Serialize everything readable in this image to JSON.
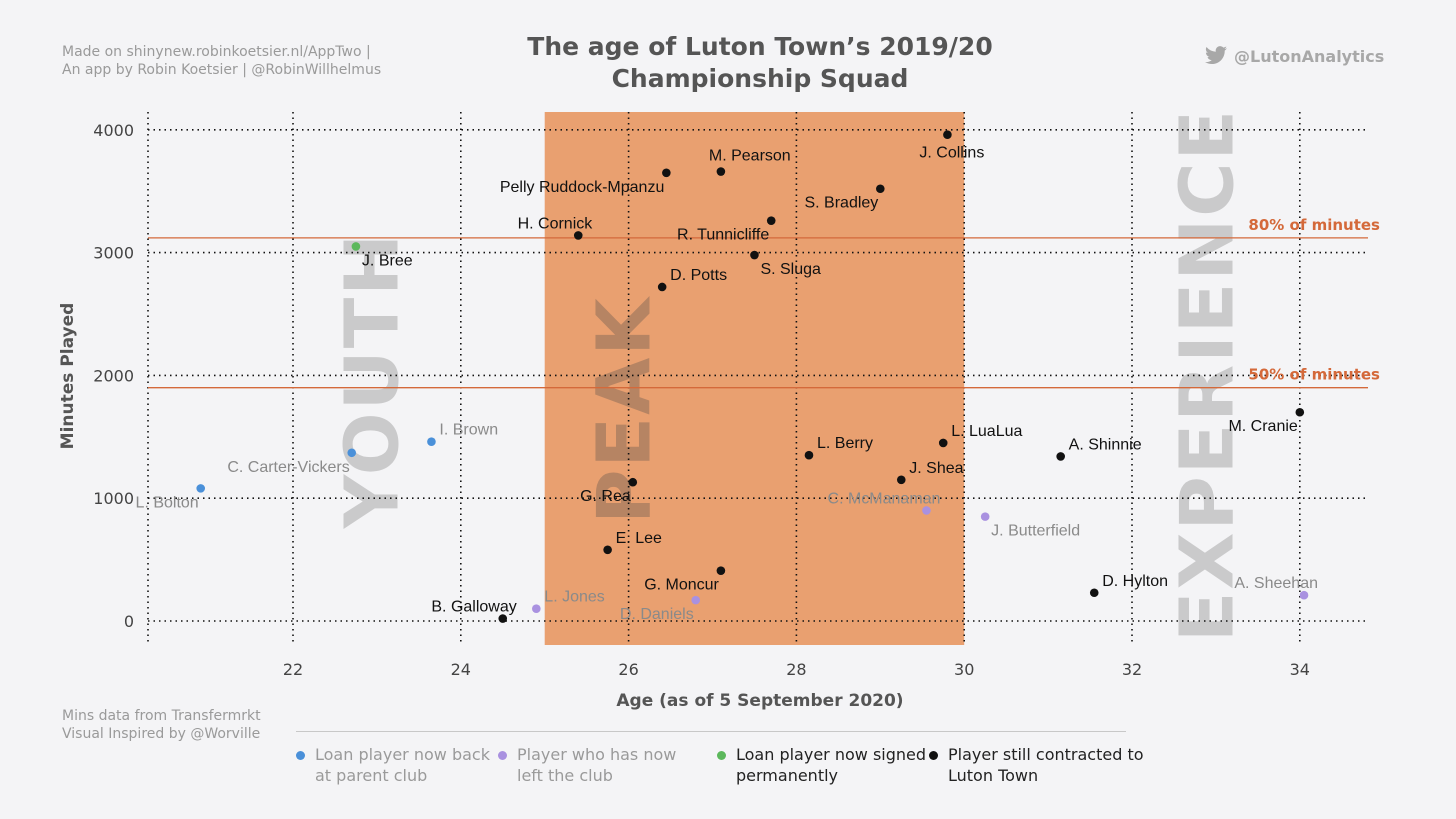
{
  "header": {
    "credit_line1": "Made on shinynew.robinkoetsier.nl/AppTwo |",
    "credit_line2": "An app by Robin Koetsier | @RobinWillhelmus",
    "title_line1": "The age of Luton Town’s 2019/20",
    "title_line2": "Championship Squad",
    "twitter_handle": "@LutonAnalytics",
    "twitter_icon": "twitter-bird-icon"
  },
  "footer": {
    "source_line1": "Mins data from Transfermrkt",
    "source_line2": "Visual Inspired by  @Worville"
  },
  "legend": {
    "items": [
      {
        "label": "Loan player now back at parent club",
        "color": "#4a90d9"
      },
      {
        "label": "Player who has now left the club",
        "color": "#a991e0"
      },
      {
        "label": "Loan player now signed permanently",
        "color": "#5cb85c"
      },
      {
        "label": "Player still contracted to Luton Town",
        "color": "#111111"
      }
    ]
  },
  "chart_data": {
    "type": "scatter",
    "title": "The age of Luton Town’s 2019/20 Championship Squad",
    "xlabel": "Age (as of 5 September 2020)",
    "ylabel": "Minutes Played",
    "xlim": [
      20.3,
      34.8
    ],
    "ylim": [
      -200,
      4150
    ],
    "xticks": [
      22,
      24,
      26,
      28,
      30,
      32,
      34
    ],
    "yticks": [
      0,
      1000,
      2000,
      3000,
      4000
    ],
    "grid": true,
    "peak_band": {
      "x": [
        25,
        30
      ],
      "color": "#e9a070"
    },
    "reference_lines": [
      {
        "label": "80% of minutes",
        "y": 3120,
        "color": "#d4693a"
      },
      {
        "label": "50% of minutes",
        "y": 1900,
        "color": "#d4693a"
      }
    ],
    "zone_labels": [
      {
        "label": "YOUTH",
        "x": 22.95
      },
      {
        "label": "PEAK",
        "x": 25.95
      },
      {
        "label": "EXPERIENCE",
        "x": 32.9
      }
    ],
    "categories": {
      "loan_returned": "#4a90d9",
      "left": "#a991e0",
      "loan_permanent": "#5cb85c",
      "contracted": "#111111"
    },
    "points": [
      {
        "name": "L. Bolton",
        "x": 20.9,
        "y": 1080,
        "cat": "loan_returned",
        "label_pos": "below-left"
      },
      {
        "name": "C. Carter-Vickers",
        "x": 22.7,
        "y": 1370,
        "cat": "loan_returned",
        "label_pos": "below-left"
      },
      {
        "name": "I. Brown",
        "x": 23.65,
        "y": 1460,
        "cat": "loan_returned",
        "label_pos": "above-right"
      },
      {
        "name": "J. Bree",
        "x": 22.75,
        "y": 3050,
        "cat": "loan_permanent",
        "label_pos": "below-right"
      },
      {
        "name": "B. Galloway",
        "x": 24.5,
        "y": 20,
        "cat": "contracted",
        "label_pos": "above-left"
      },
      {
        "name": "L. Jones",
        "x": 24.9,
        "y": 100,
        "cat": "left",
        "label_pos": "above-right"
      },
      {
        "name": "E. Lee",
        "x": 25.75,
        "y": 580,
        "cat": "contracted",
        "label_pos": "above-right"
      },
      {
        "name": "G. Rea",
        "x": 26.05,
        "y": 1130,
        "cat": "contracted",
        "label_pos": "below-left"
      },
      {
        "name": "G. Moncur",
        "x": 27.1,
        "y": 410,
        "cat": "contracted",
        "label_pos": "below-left"
      },
      {
        "name": "D. Daniels",
        "x": 26.8,
        "y": 170,
        "cat": "left",
        "label_pos": "below-left"
      },
      {
        "name": "H. Cornick",
        "x": 25.4,
        "y": 3140,
        "cat": "contracted",
        "label_pos": "above-left"
      },
      {
        "name": "Pelly Ruddock-Mpanzu",
        "x": 26.45,
        "y": 3650,
        "cat": "contracted",
        "label_pos": "below-left"
      },
      {
        "name": "M. Pearson",
        "x": 27.1,
        "y": 3660,
        "cat": "contracted",
        "label_pos": "above"
      },
      {
        "name": "R. Tunnicliffe",
        "x": 27.7,
        "y": 3260,
        "cat": "contracted",
        "label_pos": "below-left"
      },
      {
        "name": "D. Potts",
        "x": 26.4,
        "y": 2720,
        "cat": "contracted",
        "label_pos": "above-right"
      },
      {
        "name": "S. Sluga",
        "x": 27.5,
        "y": 2980,
        "cat": "contracted",
        "label_pos": "below-right"
      },
      {
        "name": "S. Bradley",
        "x": 29.0,
        "y": 3520,
        "cat": "contracted",
        "label_pos": "below-left"
      },
      {
        "name": "J. Collins",
        "x": 29.8,
        "y": 3960,
        "cat": "contracted",
        "label_pos": "below"
      },
      {
        "name": "L. Berry",
        "x": 28.15,
        "y": 1350,
        "cat": "contracted",
        "label_pos": "above-right"
      },
      {
        "name": "C. McManaman",
        "x": 29.55,
        "y": 900,
        "cat": "left",
        "label_pos": "above-left"
      },
      {
        "name": "J. Shea",
        "x": 29.25,
        "y": 1150,
        "cat": "contracted",
        "label_pos": "above-right"
      },
      {
        "name": "L. LuaLua",
        "x": 29.75,
        "y": 1450,
        "cat": "contracted",
        "label_pos": "above-right"
      },
      {
        "name": "J. Butterfield",
        "x": 30.25,
        "y": 850,
        "cat": "left",
        "label_pos": "below-right"
      },
      {
        "name": "A. Shinnie",
        "x": 31.15,
        "y": 1340,
        "cat": "contracted",
        "label_pos": "above-right"
      },
      {
        "name": "D. Hylton",
        "x": 31.55,
        "y": 230,
        "cat": "contracted",
        "label_pos": "above-right"
      },
      {
        "name": "M. Cranie",
        "x": 34.0,
        "y": 1700,
        "cat": "contracted",
        "label_pos": "below-left"
      },
      {
        "name": "A. Sheehan",
        "x": 34.05,
        "y": 210,
        "cat": "left",
        "label_pos": "above-left"
      }
    ]
  }
}
